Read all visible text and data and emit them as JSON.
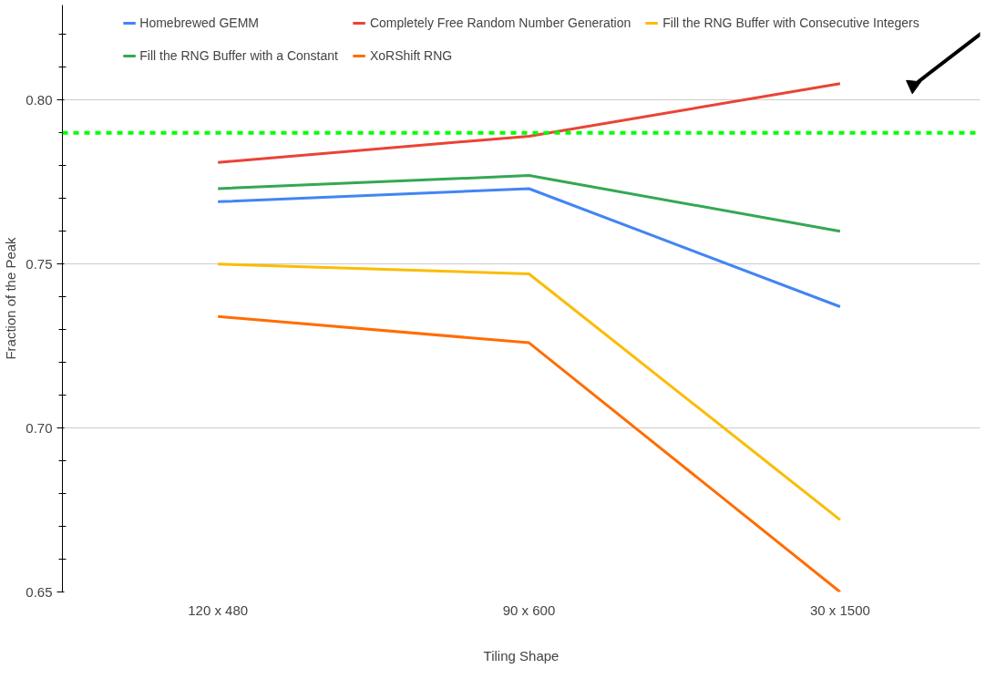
{
  "chart_data": {
    "type": "line",
    "xlabel": "Tiling Shape",
    "ylabel": "Fraction of the Peak",
    "categories": [
      "120 x 480",
      "90 x 600",
      "30 x 1500"
    ],
    "series": [
      {
        "name": "Homebrewed GEMM",
        "color": "#4285f4",
        "values": [
          0.769,
          0.773,
          0.737
        ]
      },
      {
        "name": "Completely Free Random Number Generation",
        "color": "#ea4335",
        "values": [
          0.781,
          0.789,
          0.805
        ]
      },
      {
        "name": "Fill the RNG Buffer with Consecutive Integers",
        "color": "#fbbc04",
        "values": [
          0.75,
          0.747,
          0.672
        ]
      },
      {
        "name": "Fill the RNG Buffer with a Constant",
        "color": "#34a853",
        "values": [
          0.773,
          0.777,
          0.76
        ]
      },
      {
        "name": "XoRShift RNG",
        "color": "#ff6d01",
        "values": [
          0.734,
          0.726,
          0.65
        ]
      }
    ],
    "ylim": [
      0.65,
      0.829
    ],
    "yticks": [
      {
        "value": 0.65,
        "label": "0.65"
      },
      {
        "value": 0.66,
        "label": null
      },
      {
        "value": 0.67,
        "label": null
      },
      {
        "value": 0.68,
        "label": null
      },
      {
        "value": 0.69,
        "label": null
      },
      {
        "value": 0.7,
        "label": "0.70"
      },
      {
        "value": 0.71,
        "label": null
      },
      {
        "value": 0.72,
        "label": null
      },
      {
        "value": 0.73,
        "label": null
      },
      {
        "value": 0.74,
        "label": null
      },
      {
        "value": 0.75,
        "label": "0.75"
      },
      {
        "value": 0.76,
        "label": null
      },
      {
        "value": 0.77,
        "label": null
      },
      {
        "value": 0.78,
        "label": null
      },
      {
        "value": 0.79,
        "label": null
      },
      {
        "value": 0.8,
        "label": "0.80"
      },
      {
        "value": 0.81,
        "label": null
      },
      {
        "value": 0.82,
        "label": null
      }
    ],
    "ref_lines": [
      {
        "axis": "y",
        "value": 0.79,
        "label": null,
        "color": "#00ff00",
        "line_style": "dashed"
      }
    ],
    "grid": "y",
    "legend": "top",
    "line_style": "solid",
    "marker": "none"
  }
}
